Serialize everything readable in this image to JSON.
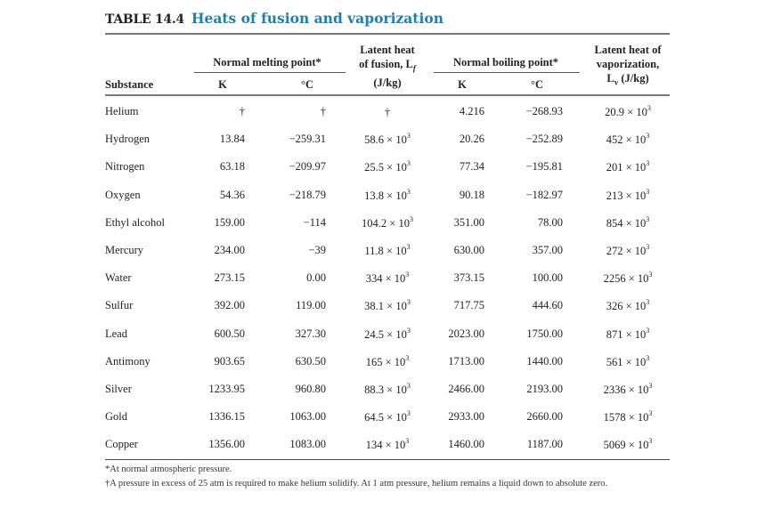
{
  "title": {
    "label": "TABLE 14.4",
    "name": "Heats of fusion and vaporization"
  },
  "header": {
    "substance": "Substance",
    "melting_group": "Normal melting point*",
    "melting_k": "K",
    "melting_c": "°C",
    "fusion_line1": "Latent heat",
    "fusion_line2": "of fusion, L",
    "fusion_sub": "f",
    "fusion_unit": "(J/kg)",
    "boiling_group": "Normal boiling point*",
    "boiling_k": "K",
    "boiling_c": "°C",
    "vap_line1": "Latent heat of",
    "vap_line2": "vaporization,",
    "vap_line3": "L",
    "vap_sub": "v",
    "vap_unit": " (J/kg)"
  },
  "rows": [
    {
      "substance": "Helium",
      "mp_k": "†",
      "mp_c": "†",
      "lf": "†",
      "lf_exp": "",
      "bp_k": "4.216",
      "bp_c": "−268.93",
      "lv": "20.9 × 10",
      "lv_exp": "3"
    },
    {
      "substance": "Hydrogen",
      "mp_k": "13.84",
      "mp_c": "−259.31",
      "lf": "58.6 × 10",
      "lf_exp": "3",
      "bp_k": "20.26",
      "bp_c": "−252.89",
      "lv": "452 × 10",
      "lv_exp": "3"
    },
    {
      "substance": "Nitrogen",
      "mp_k": "63.18",
      "mp_c": "−209.97",
      "lf": "25.5 × 10",
      "lf_exp": "3",
      "bp_k": "77.34",
      "bp_c": "−195.81",
      "lv": "201 × 10",
      "lv_exp": "3"
    },
    {
      "substance": "Oxygen",
      "mp_k": "54.36",
      "mp_c": "−218.79",
      "lf": "13.8 × 10",
      "lf_exp": "3",
      "bp_k": "90.18",
      "bp_c": "−182.97",
      "lv": "213 × 10",
      "lv_exp": "3"
    },
    {
      "substance": "Ethyl alcohol",
      "mp_k": "159.00",
      "mp_c": "−114",
      "lf": "104.2 × 10",
      "lf_exp": "3",
      "bp_k": "351.00",
      "bp_c": "78.00",
      "lv": "854 × 10",
      "lv_exp": "3"
    },
    {
      "substance": "Mercury",
      "mp_k": "234.00",
      "mp_c": "−39",
      "lf": "11.8 × 10",
      "lf_exp": "3",
      "bp_k": "630.00",
      "bp_c": "357.00",
      "lv": "272 × 10",
      "lv_exp": "3"
    },
    {
      "substance": "Water",
      "mp_k": "273.15",
      "mp_c": "0.00",
      "lf": "334 × 10",
      "lf_exp": "3",
      "bp_k": "373.15",
      "bp_c": "100.00",
      "lv": "2256 × 10",
      "lv_exp": "3"
    },
    {
      "substance": "Sulfur",
      "mp_k": "392.00",
      "mp_c": "119.00",
      "lf": "38.1 × 10",
      "lf_exp": "3",
      "bp_k": "717.75",
      "bp_c": "444.60",
      "lv": "326 × 10",
      "lv_exp": "3"
    },
    {
      "substance": "Lead",
      "mp_k": "600.50",
      "mp_c": "327.30",
      "lf": "24.5 × 10",
      "lf_exp": "3",
      "bp_k": "2023.00",
      "bp_c": "1750.00",
      "lv": "871 × 10",
      "lv_exp": "3"
    },
    {
      "substance": "Antimony",
      "mp_k": "903.65",
      "mp_c": "630.50",
      "lf": "165 × 10",
      "lf_exp": "3",
      "bp_k": "1713.00",
      "bp_c": "1440.00",
      "lv": "561 × 10",
      "lv_exp": "3"
    },
    {
      "substance": "Silver",
      "mp_k": "1233.95",
      "mp_c": "960.80",
      "lf": "88.3 × 10",
      "lf_exp": "3",
      "bp_k": "2466.00",
      "bp_c": "2193.00",
      "lv": "2336 × 10",
      "lv_exp": "3"
    },
    {
      "substance": "Gold",
      "mp_k": "1336.15",
      "mp_c": "1063.00",
      "lf": "64.5 × 10",
      "lf_exp": "3",
      "bp_k": "2933.00",
      "bp_c": "2660.00",
      "lv": "1578 × 10",
      "lv_exp": "3"
    },
    {
      "substance": "Copper",
      "mp_k": "1356.00",
      "mp_c": "1083.00",
      "lf": "134 × 10",
      "lf_exp": "3",
      "bp_k": "1460.00",
      "bp_c": "1187.00",
      "lv": "5069 × 10",
      "lv_exp": "3"
    }
  ],
  "footnotes": [
    "*At normal atmospheric pressure.",
    "†A pressure in excess of 25 atm is required to make helium solidify. At 1 atm pressure, helium remains a liquid down to absolute zero."
  ]
}
